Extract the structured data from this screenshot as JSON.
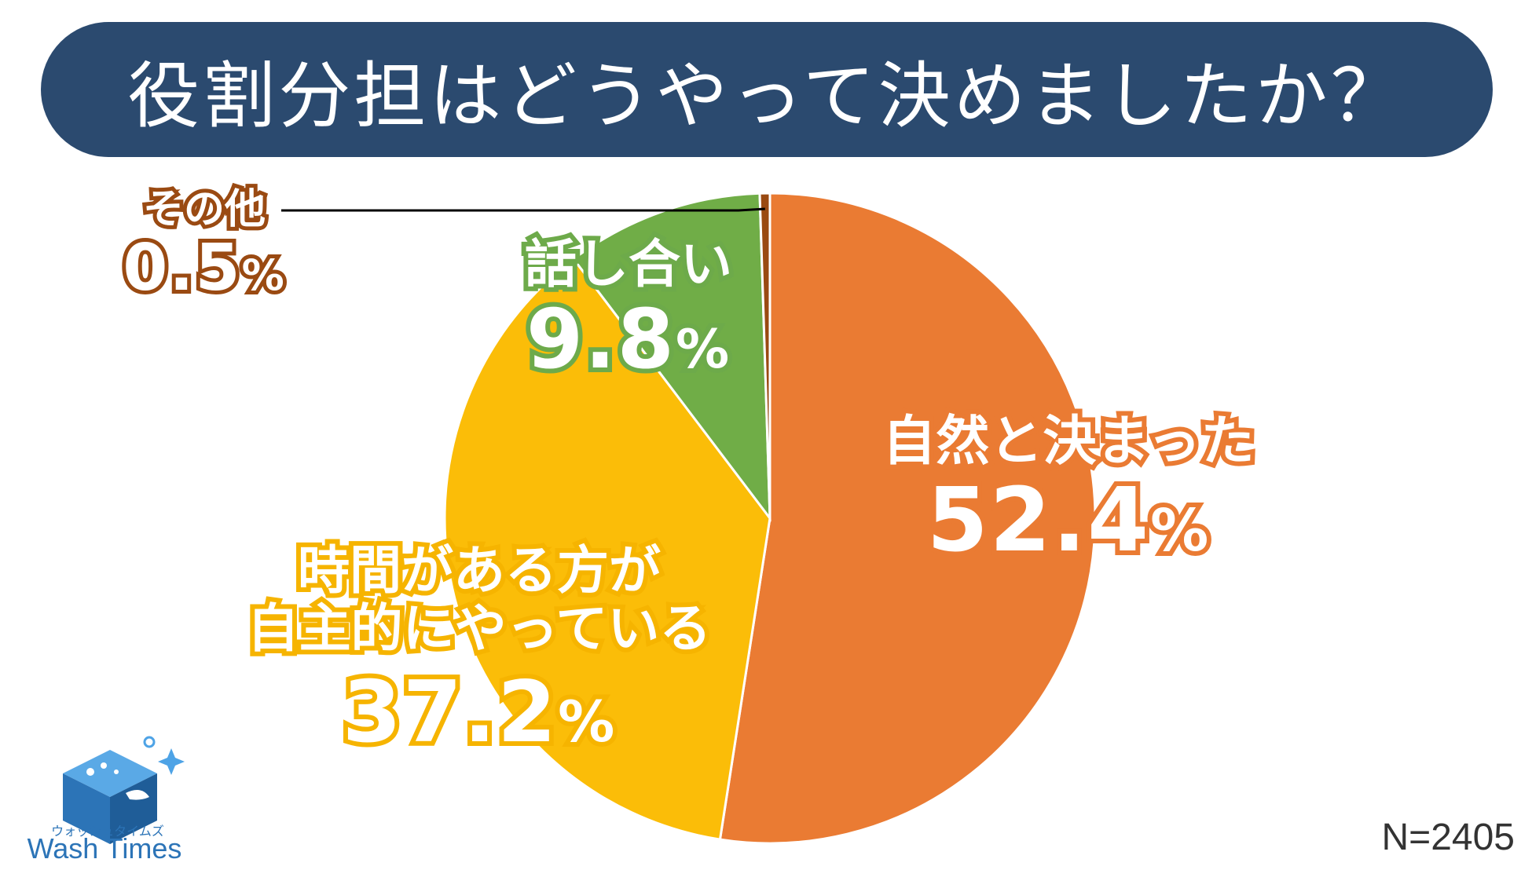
{
  "title": "役割分担はどうやって決めましたか？",
  "sample_size": "N=2405",
  "logo": {
    "kana": "ウォッシュタイムズ",
    "name": "Wash Times",
    "icon": "cube-icon"
  },
  "colors": {
    "title_bg": "#2b4a6f",
    "slice_1": "#ea7b33",
    "slice_2": "#fbbd08",
    "slice_3": "#70ad47",
    "slice_4": "#9a4a12"
  },
  "chart_data": {
    "type": "pie",
    "title": "役割分担はどうやって決めましたか？",
    "unit": "%",
    "slices": [
      {
        "label": "自然と決まった",
        "value": 52.4,
        "value_text": "52.4",
        "color": "#ea7b33"
      },
      {
        "label": "時間がある方が自主的にやっている",
        "label_line1": "時間がある方が",
        "label_line2": "自主的にやっている",
        "value": 37.2,
        "value_text": "37.2",
        "color": "#fbbd08"
      },
      {
        "label": "話し合い",
        "value": 9.8,
        "value_text": "9.8",
        "color": "#70ad47"
      },
      {
        "label": "その他",
        "value": 0.5,
        "value_text": "0.5",
        "color": "#9a4a12"
      }
    ],
    "percent_sign": "%"
  }
}
